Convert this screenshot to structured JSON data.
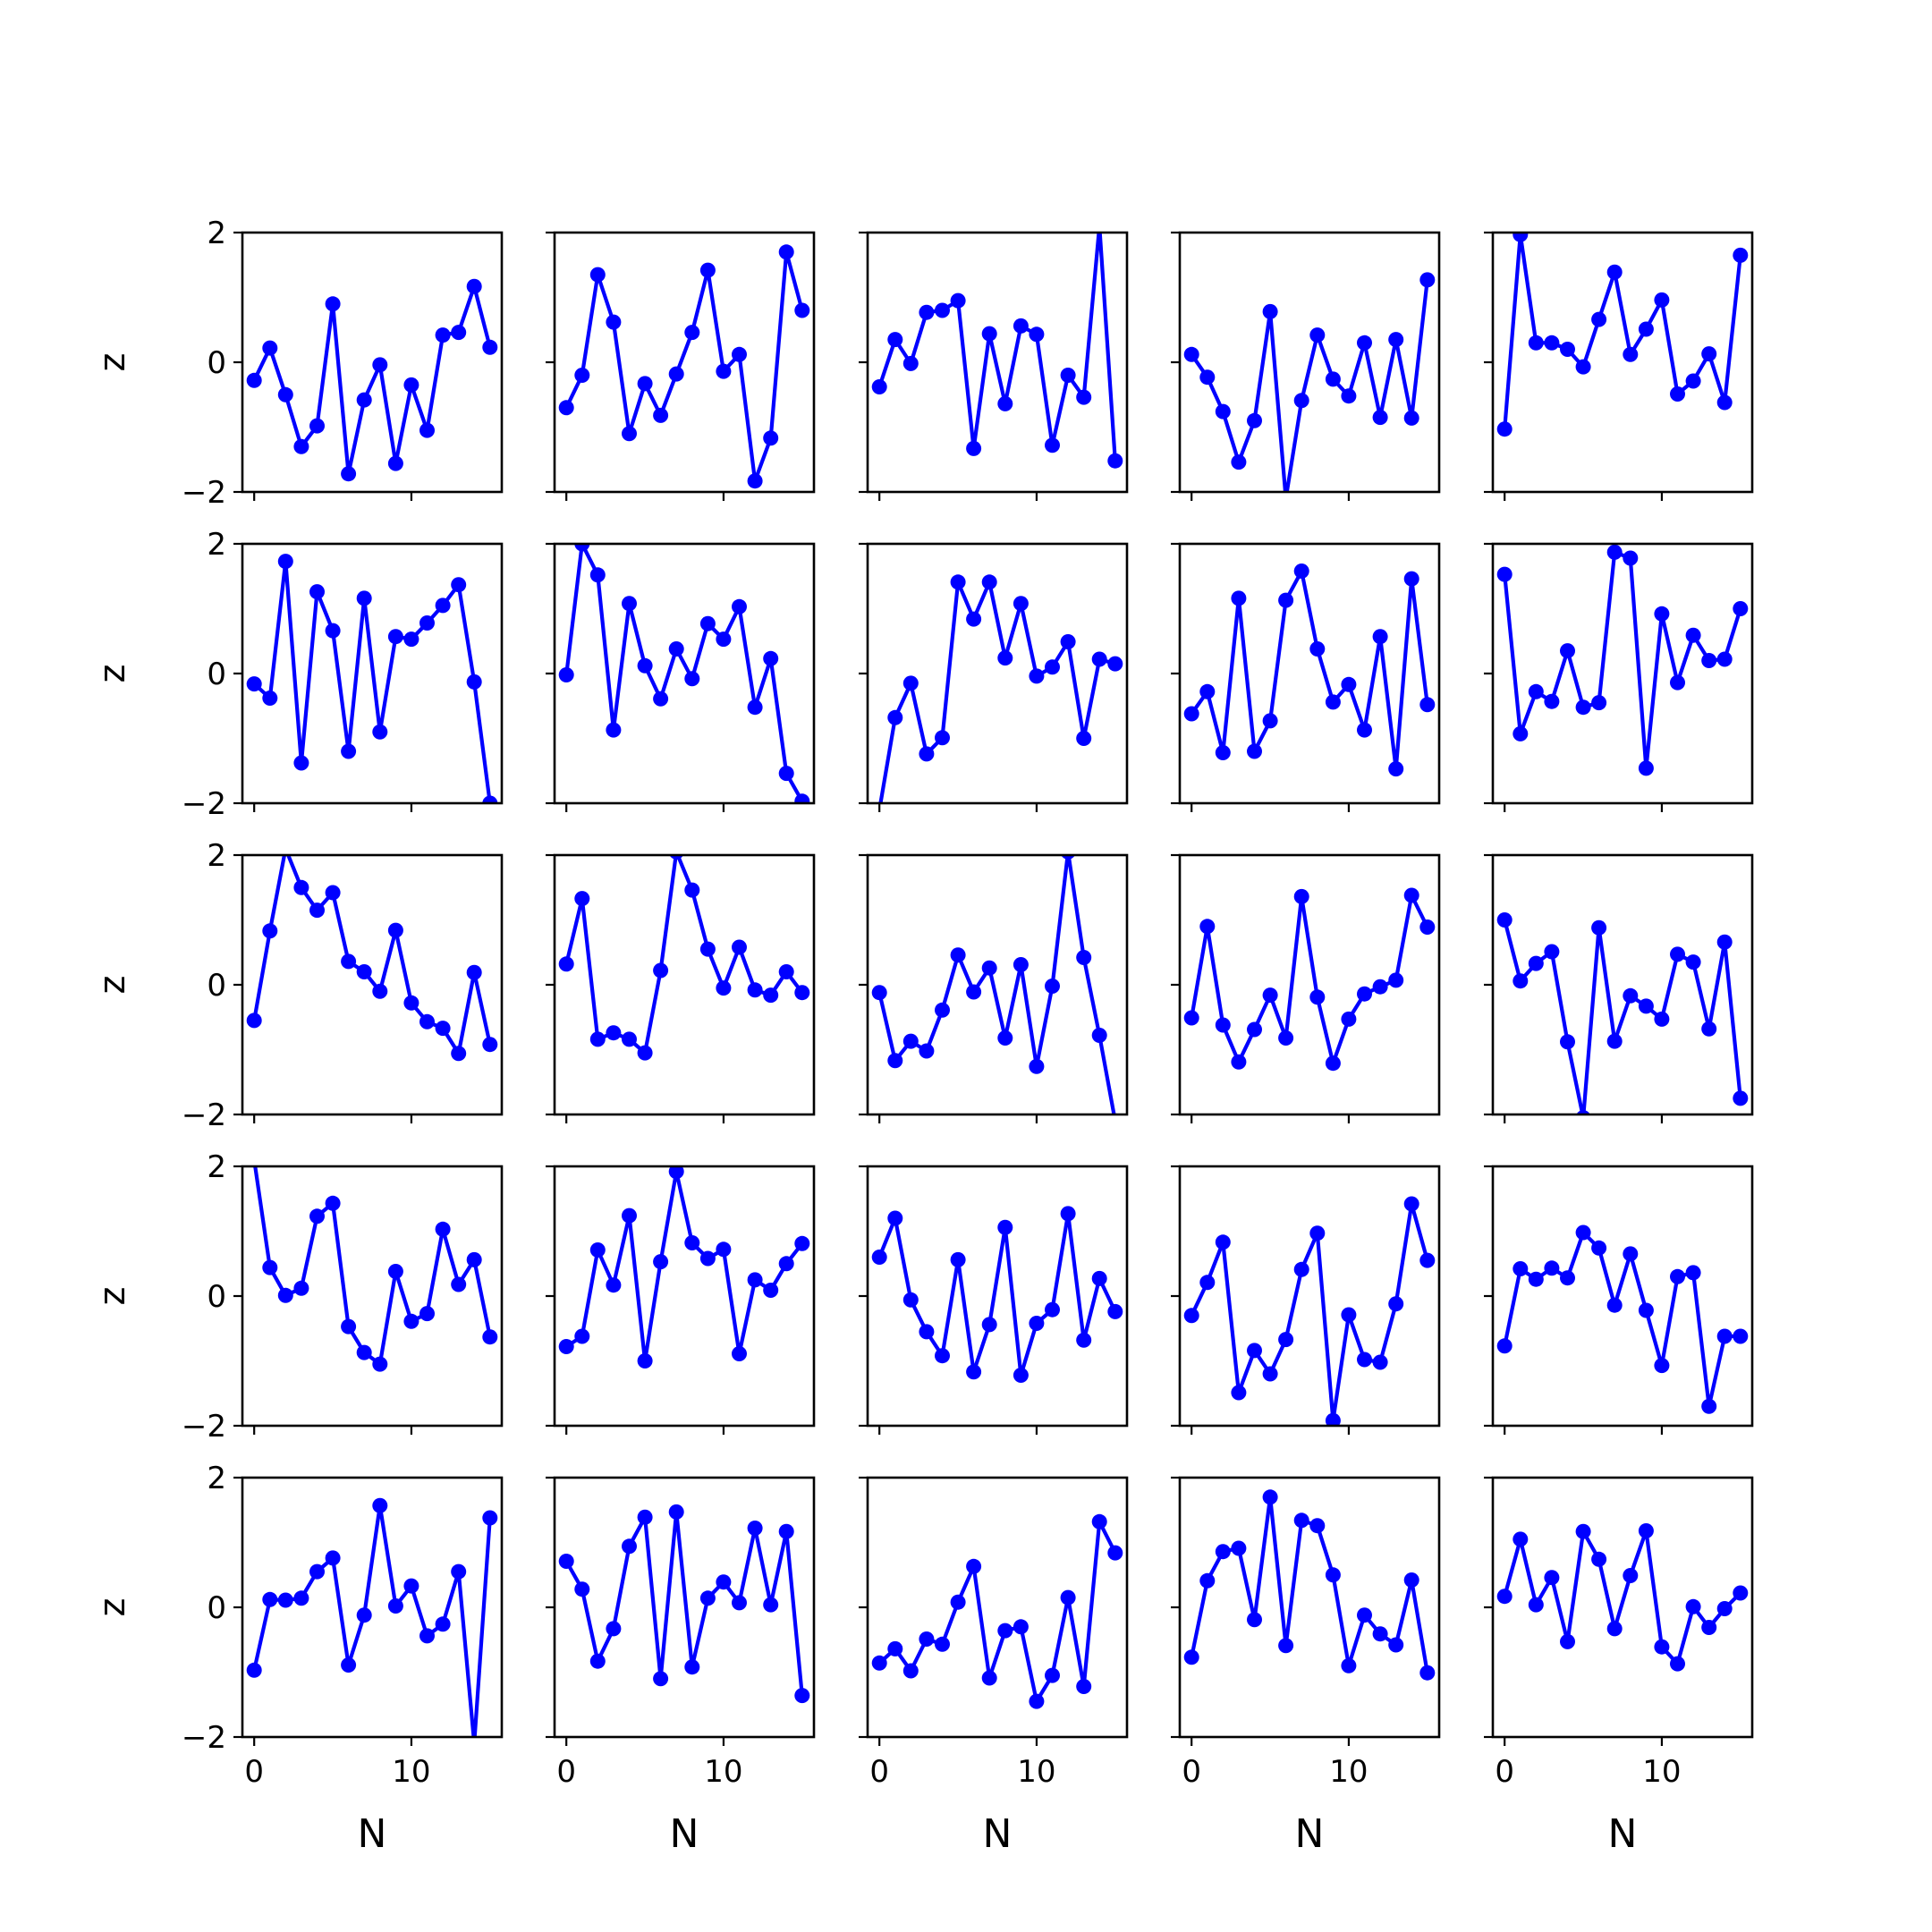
{
  "figure": {
    "rows": 5,
    "cols": 5,
    "series_color": "#0000ff",
    "axis_color": "#000000",
    "background": "#ffffff"
  },
  "chart_data": {
    "type": "line",
    "layout": "grid-5x5",
    "xlabel": "N",
    "ylabel": "z",
    "xlim": [
      -0.75,
      15.75
    ],
    "ylim": [
      -2,
      2
    ],
    "xticks": [
      0,
      10
    ],
    "yticks": [
      -2,
      0,
      2
    ],
    "x_tick_labels": [
      "0",
      "10"
    ],
    "y_tick_labels": [
      "−2",
      "0",
      "2"
    ],
    "markers": true,
    "x": [
      0,
      1,
      2,
      3,
      4,
      5,
      6,
      7,
      8,
      9,
      10,
      11,
      12,
      13,
      14,
      15
    ],
    "panels": [
      {
        "row": 0,
        "col": 0,
        "values": [
          -0.28,
          0.22,
          -0.5,
          -1.3,
          -0.98,
          0.9,
          -1.72,
          -0.58,
          -0.04,
          -1.56,
          -0.35,
          -1.05,
          0.42,
          0.46,
          1.17,
          0.23
        ]
      },
      {
        "row": 0,
        "col": 1,
        "values": [
          -0.7,
          -0.2,
          1.35,
          0.62,
          -1.1,
          -0.33,
          -0.82,
          -0.18,
          0.46,
          1.42,
          -0.14,
          0.12,
          -1.83,
          -1.17,
          1.7,
          0.8
        ]
      },
      {
        "row": 0,
        "col": 2,
        "values": [
          -0.38,
          0.35,
          -0.02,
          0.77,
          0.8,
          0.95,
          -1.33,
          0.44,
          -0.64,
          0.56,
          0.43,
          -1.28,
          -0.2,
          -0.54,
          2.1,
          -1.52
        ]
      },
      {
        "row": 0,
        "col": 3,
        "values": [
          0.12,
          -0.23,
          -0.76,
          -1.54,
          -0.9,
          0.78,
          -2.1,
          -0.59,
          0.42,
          -0.26,
          -0.52,
          0.3,
          -0.85,
          0.35,
          -0.86,
          1.27
        ]
      },
      {
        "row": 0,
        "col": 4,
        "values": [
          -1.03,
          1.97,
          0.3,
          0.3,
          0.2,
          -0.07,
          0.66,
          1.39,
          0.12,
          0.51,
          0.96,
          -0.49,
          -0.29,
          0.13,
          -0.62,
          1.65
        ]
      },
      {
        "row": 1,
        "col": 0,
        "values": [
          -0.16,
          -0.38,
          1.73,
          -1.38,
          1.26,
          0.66,
          -1.2,
          1.16,
          -0.9,
          0.57,
          0.53,
          0.78,
          1.05,
          1.37,
          -0.13,
          -2.0
        ]
      },
      {
        "row": 1,
        "col": 1,
        "values": [
          -0.02,
          2.0,
          1.52,
          -0.87,
          1.08,
          0.12,
          -0.39,
          0.38,
          -0.08,
          0.77,
          0.53,
          1.03,
          -0.52,
          0.23,
          -1.54,
          -1.97
        ]
      },
      {
        "row": 1,
        "col": 2,
        "values": [
          -2.1,
          -0.68,
          -0.15,
          -1.24,
          -0.99,
          1.41,
          0.84,
          1.41,
          0.24,
          1.08,
          -0.04,
          0.1,
          0.49,
          -1.0,
          0.22,
          0.15
        ]
      },
      {
        "row": 1,
        "col": 3,
        "values": [
          -0.62,
          -0.28,
          -1.22,
          1.16,
          -1.2,
          -0.73,
          1.13,
          1.58,
          0.38,
          -0.44,
          -0.17,
          -0.87,
          0.57,
          -1.47,
          1.46,
          -0.48
        ]
      },
      {
        "row": 1,
        "col": 4,
        "values": [
          1.53,
          -0.93,
          -0.28,
          -0.43,
          0.35,
          -0.52,
          -0.45,
          1.87,
          1.78,
          -1.46,
          0.92,
          -0.14,
          0.59,
          0.2,
          0.22,
          1.0
        ]
      },
      {
        "row": 2,
        "col": 0,
        "values": [
          -0.55,
          0.83,
          2.1,
          1.5,
          1.15,
          1.42,
          0.36,
          0.2,
          -0.1,
          0.84,
          -0.28,
          -0.57,
          -0.67,
          -1.06,
          0.19,
          -0.92
        ]
      },
      {
        "row": 2,
        "col": 1,
        "values": [
          0.32,
          1.33,
          -0.84,
          -0.74,
          -0.84,
          -1.05,
          0.22,
          2.05,
          1.46,
          0.55,
          -0.05,
          0.58,
          -0.08,
          -0.16,
          0.2,
          -0.12
        ]
      },
      {
        "row": 2,
        "col": 2,
        "values": [
          -0.12,
          -1.17,
          -0.87,
          -1.02,
          -0.39,
          0.46,
          -0.11,
          0.26,
          -0.82,
          0.31,
          -1.26,
          -0.02,
          2.05,
          0.42,
          -0.78,
          -2.1
        ]
      },
      {
        "row": 2,
        "col": 3,
        "values": [
          -0.51,
          0.9,
          -0.62,
          -1.19,
          -0.69,
          -0.16,
          -0.82,
          1.36,
          -0.19,
          -1.21,
          -0.53,
          -0.14,
          -0.03,
          0.07,
          1.38,
          0.89
        ]
      },
      {
        "row": 2,
        "col": 4,
        "values": [
          1.0,
          0.06,
          0.33,
          0.51,
          -0.88,
          -2.05,
          0.88,
          -0.87,
          -0.17,
          -0.33,
          -0.53,
          0.47,
          0.35,
          -0.68,
          0.66,
          -1.75
        ]
      },
      {
        "row": 3,
        "col": 0,
        "values": [
          2.1,
          0.44,
          0.01,
          0.12,
          1.23,
          1.43,
          -0.47,
          -0.87,
          -1.05,
          0.38,
          -0.39,
          -0.27,
          1.03,
          0.18,
          0.56,
          -0.63
        ]
      },
      {
        "row": 3,
        "col": 1,
        "values": [
          -0.78,
          -0.62,
          0.71,
          0.17,
          1.24,
          -1.0,
          0.53,
          1.92,
          0.82,
          0.58,
          0.72,
          -0.89,
          0.25,
          0.09,
          0.5,
          0.81
        ]
      },
      {
        "row": 3,
        "col": 2,
        "values": [
          0.6,
          1.2,
          -0.06,
          -0.55,
          -0.92,
          0.56,
          -1.17,
          -0.44,
          1.06,
          -1.22,
          -0.42,
          -0.21,
          1.27,
          -0.68,
          0.27,
          -0.24
        ]
      },
      {
        "row": 3,
        "col": 3,
        "values": [
          -0.3,
          0.21,
          0.83,
          -1.49,
          -0.84,
          -1.2,
          -0.67,
          0.41,
          0.97,
          -1.92,
          -0.29,
          -0.98,
          -1.02,
          -0.12,
          1.42,
          0.55
        ]
      },
      {
        "row": 3,
        "col": 4,
        "values": [
          -0.77,
          0.42,
          0.26,
          0.43,
          0.28,
          0.98,
          0.74,
          -0.14,
          0.65,
          -0.22,
          -1.07,
          0.3,
          0.36,
          -1.7,
          -0.62,
          -0.62
        ]
      },
      {
        "row": 4,
        "col": 0,
        "values": [
          -0.97,
          0.12,
          0.11,
          0.14,
          0.55,
          0.76,
          -0.89,
          -0.12,
          1.57,
          0.02,
          0.33,
          -0.44,
          -0.26,
          0.55,
          -2.1,
          1.38
        ]
      },
      {
        "row": 4,
        "col": 1,
        "values": [
          0.71,
          0.28,
          -0.83,
          -0.33,
          0.94,
          1.39,
          -1.1,
          1.47,
          -0.92,
          0.14,
          0.39,
          0.07,
          1.22,
          0.04,
          1.17,
          -1.36
        ]
      },
      {
        "row": 4,
        "col": 2,
        "values": [
          -0.86,
          -0.64,
          -0.98,
          -0.49,
          -0.57,
          0.08,
          0.63,
          -1.09,
          -0.36,
          -0.3,
          -1.45,
          -1.05,
          0.15,
          -1.22,
          1.32,
          0.84
        ]
      },
      {
        "row": 4,
        "col": 3,
        "values": [
          -0.77,
          0.41,
          0.86,
          0.91,
          -0.19,
          1.7,
          -0.59,
          1.34,
          1.26,
          0.5,
          -0.9,
          -0.12,
          -0.41,
          -0.58,
          0.42,
          -1.01
        ]
      },
      {
        "row": 4,
        "col": 4,
        "values": [
          0.17,
          1.05,
          0.04,
          0.46,
          -0.53,
          1.17,
          0.74,
          -0.33,
          0.49,
          1.18,
          -0.61,
          -0.87,
          0.01,
          -0.31,
          -0.02,
          0.22
        ]
      }
    ]
  }
}
